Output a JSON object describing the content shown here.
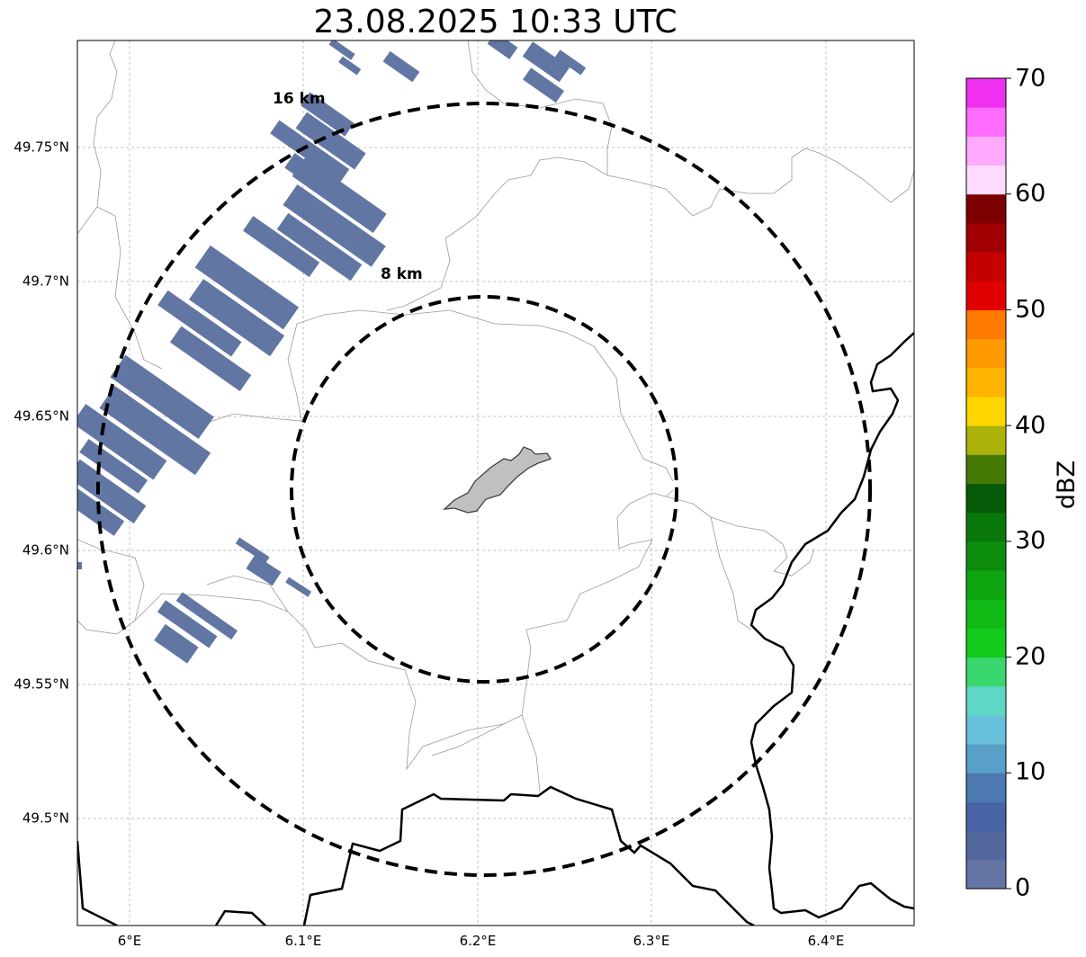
{
  "title": "23.08.2025 10:33 UTC",
  "map": {
    "lat_labels": [
      "49.75°N",
      "49.7°N",
      "49.65°N",
      "49.6°N",
      "49.55°N",
      "49.5°N"
    ],
    "lon_labels": [
      "6°E",
      "6.1°E",
      "6.2°E",
      "6.3°E",
      "6.4°E"
    ],
    "range_rings": [
      {
        "label": "16 km",
        "radius_km": 16
      },
      {
        "label": "8 km",
        "radius_km": 8
      }
    ],
    "gridlines": true,
    "colors": {
      "echo": "#5a6fa0",
      "border": "#000000",
      "commune_lines": "#9a9a9a",
      "city_fill": "#c0c0c0",
      "grid": "#b0b0b0"
    }
  },
  "colorbar": {
    "label": "dBZ",
    "tick_labels": [
      "0",
      "10",
      "20",
      "30",
      "40",
      "50",
      "60",
      "70"
    ],
    "colors": [
      "#6374a5",
      "#5468a0",
      "#4763a3",
      "#4b79b0",
      "#58a0c8",
      "#67c0dc",
      "#5fd7c5",
      "#3ad66e",
      "#12cb1c",
      "#10ba15",
      "#0ea511",
      "#0c8d0e",
      "#0a780b",
      "#065a08",
      "#457a05",
      "#abb20a",
      "#ffd600",
      "#ffb400",
      "#ff9a00",
      "#ff7a00",
      "#e00000",
      "#c40000",
      "#a00000",
      "#7d0000",
      "#ffdcff",
      "#ffaaff",
      "#ff6cff",
      "#f030f0"
    ]
  }
}
